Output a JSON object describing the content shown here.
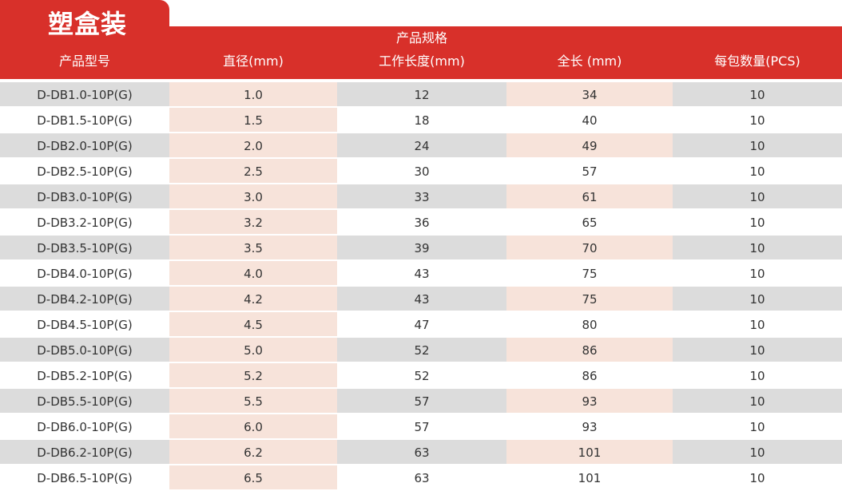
{
  "title": "塑盒装",
  "header": {
    "group": "产品规格",
    "columns": [
      "产品型号",
      "直径(mm)",
      "工作长度(mm)",
      "全长 (mm)",
      "每包数量(PCS)"
    ]
  },
  "rows": [
    [
      "D-DB1.0-10P(G)",
      "1.0",
      "12",
      "34",
      "10"
    ],
    [
      "D-DB1.5-10P(G)",
      "1.5",
      "18",
      "40",
      "10"
    ],
    [
      "D-DB2.0-10P(G)",
      "2.0",
      "24",
      "49",
      "10"
    ],
    [
      "D-DB2.5-10P(G)",
      "2.5",
      "30",
      "57",
      "10"
    ],
    [
      "D-DB3.0-10P(G)",
      "3.0",
      "33",
      "61",
      "10"
    ],
    [
      "D-DB3.2-10P(G)",
      "3.2",
      "36",
      "65",
      "10"
    ],
    [
      "D-DB3.5-10P(G)",
      "3.5",
      "39",
      "70",
      "10"
    ],
    [
      "D-DB4.0-10P(G)",
      "4.0",
      "43",
      "75",
      "10"
    ],
    [
      "D-DB4.2-10P(G)",
      "4.2",
      "43",
      "75",
      "10"
    ],
    [
      "D-DB4.5-10P(G)",
      "4.5",
      "47",
      "80",
      "10"
    ],
    [
      "D-DB5.0-10P(G)",
      "5.0",
      "52",
      "86",
      "10"
    ],
    [
      "D-DB5.2-10P(G)",
      "5.2",
      "52",
      "86",
      "10"
    ],
    [
      "D-DB5.5-10P(G)",
      "5.5",
      "57",
      "93",
      "10"
    ],
    [
      "D-DB6.0-10P(G)",
      "6.0",
      "57",
      "93",
      "10"
    ],
    [
      "D-DB6.2-10P(G)",
      "6.2",
      "63",
      "101",
      "10"
    ],
    [
      "D-DB6.5-10P(G)",
      "6.5",
      "63",
      "101",
      "10"
    ]
  ],
  "colors": {
    "header_red": "#d8302a",
    "stripe_gray": "#dcdcdc",
    "stripe_peach": "#f7e3da"
  }
}
